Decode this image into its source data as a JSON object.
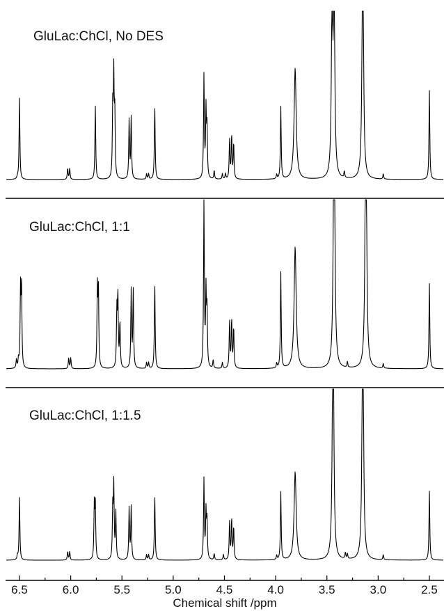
{
  "chart_data": [
    {
      "type": "line",
      "panel_label": "GluLac:ChCl, No DES",
      "x_reversed": true,
      "xlim": [
        6.6,
        2.45
      ],
      "ylim": [
        0,
        1
      ],
      "grid": false,
      "peaks": [
        {
          "x": 6.52,
          "y": 0.02
        },
        {
          "x": 6.5,
          "y": 0.73
        },
        {
          "x": 6.03,
          "y": 0.1
        },
        {
          "x": 6.01,
          "y": 0.1
        },
        {
          "x": 5.76,
          "y": 0.66
        },
        {
          "x": 5.59,
          "y": 0.6
        },
        {
          "x": 5.58,
          "y": 0.89
        },
        {
          "x": 5.57,
          "y": 0.56
        },
        {
          "x": 5.43,
          "y": 0.53
        },
        {
          "x": 5.41,
          "y": 0.55
        },
        {
          "x": 5.26,
          "y": 0.05
        },
        {
          "x": 5.24,
          "y": 0.05
        },
        {
          "x": 5.18,
          "y": 0.66
        },
        {
          "x": 4.7,
          "y": 0.93
        },
        {
          "x": 4.68,
          "y": 0.6
        },
        {
          "x": 4.67,
          "y": 0.44
        },
        {
          "x": 4.6,
          "y": 0.08
        },
        {
          "x": 4.52,
          "y": 0.05
        },
        {
          "x": 4.49,
          "y": 0.05
        },
        {
          "x": 4.45,
          "y": 0.36
        },
        {
          "x": 4.43,
          "y": 0.39
        },
        {
          "x": 4.41,
          "y": 0.33
        },
        {
          "x": 3.99,
          "y": 0.04
        },
        {
          "x": 3.95,
          "y": 0.65
        },
        {
          "x": 3.81,
          "y": 1.0
        },
        {
          "x": 3.45,
          "y": 1.5
        },
        {
          "x": 3.43,
          "y": 1.7
        },
        {
          "x": 3.33,
          "y": 0.06
        },
        {
          "x": 3.15,
          "y": 2.4
        },
        {
          "x": 2.95,
          "y": 0.05
        },
        {
          "x": 2.5,
          "y": 0.8
        }
      ]
    },
    {
      "type": "line",
      "panel_label": "GluLac:ChCl, 1:1",
      "x_reversed": true,
      "xlim": [
        6.6,
        2.45
      ],
      "ylim": [
        0,
        1
      ],
      "grid": false,
      "peaks": [
        {
          "x": 6.53,
          "y": 0.07
        },
        {
          "x": 6.51,
          "y": 0.07
        },
        {
          "x": 6.49,
          "y": 0.64
        },
        {
          "x": 6.48,
          "y": 0.64
        },
        {
          "x": 6.02,
          "y": 0.09
        },
        {
          "x": 6.0,
          "y": 0.09
        },
        {
          "x": 5.74,
          "y": 0.64
        },
        {
          "x": 5.73,
          "y": 0.64
        },
        {
          "x": 5.55,
          "y": 0.46
        },
        {
          "x": 5.54,
          "y": 0.59
        },
        {
          "x": 5.52,
          "y": 0.38
        },
        {
          "x": 5.41,
          "y": 0.64
        },
        {
          "x": 5.39,
          "y": 0.64
        },
        {
          "x": 5.26,
          "y": 0.05
        },
        {
          "x": 5.24,
          "y": 0.05
        },
        {
          "x": 5.18,
          "y": 0.7
        },
        {
          "x": 4.7,
          "y": 1.4
        },
        {
          "x": 4.68,
          "y": 0.6
        },
        {
          "x": 4.67,
          "y": 0.45
        },
        {
          "x": 4.61,
          "y": 0.07
        },
        {
          "x": 4.52,
          "y": 0.05
        },
        {
          "x": 4.45,
          "y": 0.39
        },
        {
          "x": 4.43,
          "y": 0.4
        },
        {
          "x": 4.41,
          "y": 0.34
        },
        {
          "x": 3.99,
          "y": 0.04
        },
        {
          "x": 3.95,
          "y": 0.79
        },
        {
          "x": 3.81,
          "y": 1.0
        },
        {
          "x": 3.43,
          "y": 2.6
        },
        {
          "x": 3.3,
          "y": 0.05
        },
        {
          "x": 3.12,
          "y": 2.6
        },
        {
          "x": 2.95,
          "y": 0.04
        },
        {
          "x": 2.5,
          "y": 0.7
        }
      ]
    },
    {
      "type": "line",
      "panel_label": "GluLac:ChCl, 1:1.5",
      "x_reversed": true,
      "xlim": [
        6.6,
        2.45
      ],
      "ylim": [
        0,
        1
      ],
      "grid": false,
      "peaks": [
        {
          "x": 6.52,
          "y": 0.04
        },
        {
          "x": 6.5,
          "y": 0.58
        },
        {
          "x": 6.03,
          "y": 0.08
        },
        {
          "x": 6.01,
          "y": 0.08
        },
        {
          "x": 5.77,
          "y": 0.5
        },
        {
          "x": 5.76,
          "y": 0.5
        },
        {
          "x": 5.59,
          "y": 0.46
        },
        {
          "x": 5.58,
          "y": 0.68
        },
        {
          "x": 5.56,
          "y": 0.44
        },
        {
          "x": 5.43,
          "y": 0.48
        },
        {
          "x": 5.41,
          "y": 0.49
        },
        {
          "x": 5.26,
          "y": 0.05
        },
        {
          "x": 5.24,
          "y": 0.05
        },
        {
          "x": 5.18,
          "y": 0.6
        },
        {
          "x": 4.7,
          "y": 0.75
        },
        {
          "x": 4.68,
          "y": 0.43
        },
        {
          "x": 4.67,
          "y": 0.35
        },
        {
          "x": 4.6,
          "y": 0.06
        },
        {
          "x": 4.51,
          "y": 0.05
        },
        {
          "x": 4.45,
          "y": 0.36
        },
        {
          "x": 4.43,
          "y": 0.38
        },
        {
          "x": 4.41,
          "y": 0.31
        },
        {
          "x": 3.99,
          "y": 0.04
        },
        {
          "x": 3.95,
          "y": 0.63
        },
        {
          "x": 3.81,
          "y": 0.82
        },
        {
          "x": 3.44,
          "y": 2.6
        },
        {
          "x": 3.32,
          "y": 0.06
        },
        {
          "x": 3.3,
          "y": 0.05
        },
        {
          "x": 3.15,
          "y": 2.6
        },
        {
          "x": 2.95,
          "y": 0.05
        },
        {
          "x": 2.5,
          "y": 0.64
        }
      ]
    }
  ],
  "x_axis": {
    "title": "Chemical shift /ppm",
    "tick_values": [
      6.5,
      6.0,
      5.5,
      5.0,
      4.5,
      4.0,
      3.5,
      3.0,
      2.5
    ],
    "tick_labels": [
      "6.5",
      "6.0",
      "5.5",
      "5.0",
      "4.5",
      "4.0",
      "3.5",
      "3.0",
      "2.5"
    ]
  }
}
